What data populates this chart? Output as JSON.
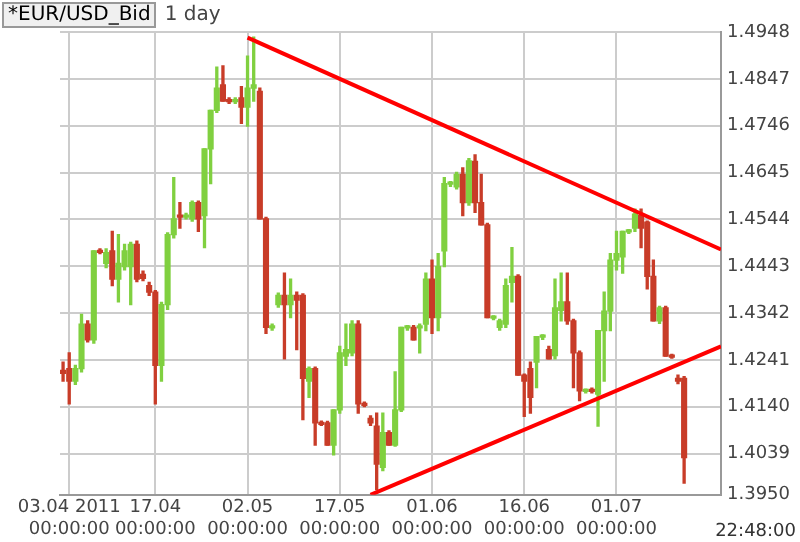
{
  "chart_data": {
    "type": "candlestick",
    "title": "*EUR/USD_Bid",
    "subtitle": "1 day",
    "x": [
      "2011-04-02",
      "2011-04-03",
      "2011-04-04",
      "2011-04-05",
      "2011-04-06",
      "2011-04-07",
      "2011-04-08",
      "2011-04-09",
      "2011-04-10",
      "2011-04-11",
      "2011-04-12",
      "2011-04-13",
      "2011-04-14",
      "2011-04-15",
      "2011-04-16",
      "2011-04-17",
      "2011-04-18",
      "2011-04-19",
      "2011-04-20",
      "2011-04-21",
      "2011-04-22",
      "2011-04-23",
      "2011-04-24",
      "2011-04-25",
      "2011-04-26",
      "2011-04-27",
      "2011-04-28",
      "2011-04-29",
      "2011-04-30",
      "2011-05-01",
      "2011-05-02",
      "2011-05-03",
      "2011-05-04",
      "2011-05-05",
      "2011-05-06",
      "2011-05-07",
      "2011-05-08",
      "2011-05-09",
      "2011-05-10",
      "2011-05-11",
      "2011-05-12",
      "2011-05-13",
      "2011-05-14",
      "2011-05-15",
      "2011-05-16",
      "2011-05-17",
      "2011-05-18",
      "2011-05-19",
      "2011-05-20",
      "2011-05-21",
      "2011-05-22",
      "2011-05-23",
      "2011-05-24",
      "2011-05-25",
      "2011-05-26",
      "2011-05-27",
      "2011-05-28",
      "2011-05-29",
      "2011-05-30",
      "2011-05-31",
      "2011-06-01",
      "2011-06-02",
      "2011-06-03",
      "2011-06-04",
      "2011-06-05",
      "2011-06-06",
      "2011-06-07",
      "2011-06-08",
      "2011-06-09",
      "2011-06-10",
      "2011-06-11",
      "2011-06-12",
      "2011-06-13",
      "2011-06-14",
      "2011-06-15",
      "2011-06-16",
      "2011-06-17",
      "2011-06-18",
      "2011-06-19",
      "2011-06-20",
      "2011-06-21",
      "2011-06-22",
      "2011-06-23",
      "2011-06-24",
      "2011-06-25",
      "2011-06-26",
      "2011-06-27",
      "2011-06-28",
      "2011-06-29",
      "2011-06-30",
      "2011-07-01",
      "2011-07-02",
      "2011-07-03",
      "2011-07-04",
      "2011-07-05",
      "2011-07-06",
      "2011-07-07",
      "2011-07-08",
      "2011-07-09",
      "2011-07-10",
      "2011-07-11",
      "2011-07-12"
    ],
    "ohlc": [
      [
        1.4218,
        1.4236,
        1.4195,
        1.4212
      ],
      [
        1.4222,
        1.4256,
        1.4146,
        1.4195
      ],
      [
        1.4195,
        1.4229,
        1.4188,
        1.4222
      ],
      [
        1.4222,
        1.4339,
        1.4215,
        1.4318
      ],
      [
        1.4318,
        1.4325,
        1.428,
        1.4284
      ],
      [
        1.4284,
        1.4476,
        1.4277,
        1.4476
      ],
      [
        1.4477,
        1.448,
        1.447,
        1.4473
      ],
      [
        1.4449,
        1.448,
        1.444,
        1.4472
      ],
      [
        1.4476,
        1.4518,
        1.4401,
        1.4415
      ],
      [
        1.4415,
        1.4511,
        1.4366,
        1.4449
      ],
      [
        1.4442,
        1.449,
        1.4435,
        1.4476
      ],
      [
        1.4442,
        1.4494,
        1.436,
        1.449
      ],
      [
        1.449,
        1.4497,
        1.441,
        1.4415
      ],
      [
        1.4425,
        1.4432,
        1.4412,
        1.4417
      ],
      [
        1.4401,
        1.4408,
        1.438,
        1.4387
      ],
      [
        1.4387,
        1.439,
        1.4146,
        1.4229
      ],
      [
        1.4229,
        1.4365,
        1.4195,
        1.436
      ],
      [
        1.436,
        1.4515,
        1.435,
        1.4511
      ],
      [
        1.4511,
        1.4634,
        1.4504,
        1.4545
      ],
      [
        1.4553,
        1.458,
        1.4525,
        1.4549
      ],
      [
        1.4549,
        1.4557,
        1.4545,
        1.4553
      ],
      [
        1.4545,
        1.4583,
        1.454,
        1.458
      ],
      [
        1.458,
        1.4583,
        1.4518,
        1.4545
      ],
      [
        1.4552,
        1.4696,
        1.4483,
        1.4696
      ],
      [
        1.4696,
        1.4779,
        1.4621,
        1.4779
      ],
      [
        1.4779,
        1.4872,
        1.4775,
        1.4827
      ],
      [
        1.4834,
        1.4875,
        1.4799,
        1.4799
      ],
      [
        1.4802,
        1.4806,
        1.4794,
        1.4798
      ],
      [
        1.4798,
        1.4806,
        1.4794,
        1.4802
      ],
      [
        1.4806,
        1.483,
        1.4751,
        1.4786
      ],
      [
        1.4786,
        1.4896,
        1.4745,
        1.4827
      ],
      [
        1.4827,
        1.4937,
        1.4799,
        1.4834
      ],
      [
        1.482,
        1.4827,
        1.4545,
        1.4545
      ],
      [
        1.4545,
        1.4548,
        1.4298,
        1.4311
      ],
      [
        1.431,
        1.4318,
        1.4305,
        1.4314
      ],
      [
        1.436,
        1.4385,
        1.4355,
        1.438
      ],
      [
        1.438,
        1.4428,
        1.4243,
        1.436
      ],
      [
        1.436,
        1.4415,
        1.4332,
        1.438
      ],
      [
        1.438,
        1.4387,
        1.4263,
        1.437
      ],
      [
        1.438,
        1.4383,
        1.4112,
        1.4201
      ],
      [
        1.4195,
        1.4225,
        1.416,
        1.4222
      ],
      [
        1.4222,
        1.4225,
        1.4057,
        1.4105
      ],
      [
        1.4106,
        1.4109,
        1.41,
        1.4102
      ],
      [
        1.4105,
        1.4108,
        1.4057,
        1.4057
      ],
      [
        1.4057,
        1.4133,
        1.4036,
        1.4133
      ],
      [
        1.4133,
        1.427,
        1.4126,
        1.4256
      ],
      [
        1.4249,
        1.4318,
        1.4229,
        1.4263
      ],
      [
        1.4256,
        1.4325,
        1.425,
        1.4318
      ],
      [
        1.4318,
        1.4325,
        1.4126,
        1.4146
      ],
      [
        1.4147,
        1.415,
        1.414,
        1.4143
      ],
      [
        1.4115,
        1.412,
        1.41,
        1.4105
      ],
      [
        1.4098,
        1.4126,
        1.3961,
        1.4016
      ],
      [
        1.4009,
        1.4126,
        1.4002,
        1.4084
      ],
      [
        1.4084,
        1.4088,
        1.4057,
        1.4057
      ],
      [
        1.4057,
        1.4215,
        1.4055,
        1.4133
      ],
      [
        1.4133,
        1.4311,
        1.413,
        1.4311
      ],
      [
        1.431,
        1.4315,
        1.4305,
        1.4314
      ],
      [
        1.4311,
        1.4315,
        1.4284,
        1.4284
      ],
      [
        1.431,
        1.4318,
        1.4256,
        1.4314
      ],
      [
        1.4318,
        1.4428,
        1.4304,
        1.4415
      ],
      [
        1.4415,
        1.4456,
        1.4298,
        1.4332
      ],
      [
        1.4332,
        1.447,
        1.4304,
        1.4442
      ],
      [
        1.4476,
        1.4634,
        1.4442,
        1.4621
      ],
      [
        1.462,
        1.4625,
        1.4615,
        1.4624
      ],
      [
        1.4614,
        1.4645,
        1.461,
        1.4641
      ],
      [
        1.4641,
        1.4655,
        1.4552,
        1.458
      ],
      [
        1.458,
        1.4675,
        1.4575,
        1.467
      ],
      [
        1.4669,
        1.4683,
        1.4559,
        1.458
      ],
      [
        1.458,
        1.4641,
        1.4532,
        1.4532
      ],
      [
        1.4532,
        1.4535,
        1.4332,
        1.4332
      ],
      [
        1.4331,
        1.4336,
        1.4328,
        1.4335
      ],
      [
        1.4311,
        1.4328,
        1.4305,
        1.4325
      ],
      [
        1.4318,
        1.4415,
        1.4311,
        1.4401
      ],
      [
        1.4408,
        1.4483,
        1.4366,
        1.4421
      ],
      [
        1.4421,
        1.4424,
        1.4208,
        1.4208
      ],
      [
        1.4208,
        1.421,
        1.4119,
        1.4195
      ],
      [
        1.4222,
        1.4236,
        1.4126,
        1.416
      ],
      [
        1.4236,
        1.4291,
        1.4181,
        1.4291
      ],
      [
        1.429,
        1.4295,
        1.4285,
        1.4294
      ],
      [
        1.4263,
        1.427,
        1.4243,
        1.4243
      ],
      [
        1.425,
        1.4415,
        1.4243,
        1.4353
      ],
      [
        1.4348,
        1.4428,
        1.4325,
        1.4366
      ],
      [
        1.4366,
        1.4428,
        1.4318,
        1.4325
      ],
      [
        1.4325,
        1.4328,
        1.4181,
        1.4256
      ],
      [
        1.4256,
        1.426,
        1.4153,
        1.4174
      ],
      [
        1.4173,
        1.4178,
        1.417,
        1.4177
      ],
      [
        1.4177,
        1.418,
        1.417,
        1.4173
      ],
      [
        1.4167,
        1.4304,
        1.4098,
        1.4304
      ],
      [
        1.4304,
        1.4387,
        1.4195,
        1.4346
      ],
      [
        1.4346,
        1.447,
        1.4304,
        1.4456
      ],
      [
        1.4456,
        1.4518,
        1.4435,
        1.447
      ],
      [
        1.4463,
        1.4518,
        1.4428,
        1.4518
      ],
      [
        1.4517,
        1.4522,
        1.4514,
        1.4521
      ],
      [
        1.4525,
        1.4566,
        1.4518,
        1.4555
      ],
      [
        1.4552,
        1.4566,
        1.4483,
        1.4525
      ],
      [
        1.4538,
        1.454,
        1.4394,
        1.4421
      ],
      [
        1.4421,
        1.4456,
        1.4325,
        1.4325
      ],
      [
        1.4325,
        1.4356,
        1.432,
        1.4353
      ],
      [
        1.4353,
        1.4356,
        1.4249,
        1.4249
      ],
      [
        1.4251,
        1.4253,
        1.4245,
        1.4247
      ],
      [
        1.4201,
        1.4208,
        1.419,
        1.4195
      ],
      [
        1.4201,
        1.4205,
        1.3975,
        1.403
      ]
    ],
    "colors": [
      "#c83c28",
      "#c83c28",
      "#80d040",
      "#80d040",
      "#c83c28",
      "#80d040",
      "#c83c28",
      "#80d040",
      "#c83c28",
      "#80d040",
      "#80d040",
      "#80d040",
      "#c83c28",
      "#c83c28",
      "#c83c28",
      "#c83c28",
      "#80d040",
      "#80d040",
      "#80d040",
      "#c83c28",
      "#80d040",
      "#80d040",
      "#c83c28",
      "#80d040",
      "#80d040",
      "#80d040",
      "#c83c28",
      "#c83c28",
      "#80d040",
      "#c83c28",
      "#80d040",
      "#80d040",
      "#c83c28",
      "#c83c28",
      "#80d040",
      "#80d040",
      "#c83c28",
      "#80d040",
      "#c83c28",
      "#c83c28",
      "#80d040",
      "#c83c28",
      "#c83c28",
      "#c83c28",
      "#80d040",
      "#80d040",
      "#80d040",
      "#80d040",
      "#c83c28",
      "#c83c28",
      "#c83c28",
      "#c83c28",
      "#80d040",
      "#c83c28",
      "#80d040",
      "#80d040",
      "#80d040",
      "#c83c28",
      "#80d040",
      "#80d040",
      "#c83c28",
      "#80d040",
      "#80d040",
      "#80d040",
      "#80d040",
      "#c83c28",
      "#80d040",
      "#c83c28",
      "#c83c28",
      "#c83c28",
      "#80d040",
      "#80d040",
      "#80d040",
      "#80d040",
      "#c83c28",
      "#c83c28",
      "#c83c28",
      "#80d040",
      "#80d040",
      "#c83c28",
      "#80d040",
      "#80d040",
      "#c83c28",
      "#c83c28",
      "#c83c28",
      "#80d040",
      "#c83c28",
      "#80d040",
      "#80d040",
      "#80d040",
      "#80d040",
      "#80d040",
      "#80d040",
      "#80d040",
      "#c83c28",
      "#c83c28",
      "#c83c28",
      "#80d040",
      "#c83c28",
      "#c83c28",
      "#c83c28",
      "#c83c28"
    ],
    "series": [
      {
        "type": "line",
        "color": "#ff0000",
        "x": [
          "2011-05-02",
          "2011-07-18"
        ],
        "values": [
          1.4936,
          1.4479
        ]
      },
      {
        "type": "line",
        "color": "#ff0000",
        "x": [
          "2011-05-22",
          "2011-07-18"
        ],
        "values": [
          1.395,
          1.427
        ]
      }
    ],
    "xlim": [
      "2011-04-01T12:00",
      "2011-07-18"
    ],
    "xticks": [
      {
        "value": "2011-04-03",
        "label": "03.04 2011\n00:00:00"
      },
      {
        "value": "2011-04-17",
        "label": "17.04\n00:00:00"
      },
      {
        "value": "2011-05-02",
        "label": "02.05\n00:00:00"
      },
      {
        "value": "2011-05-17",
        "label": "17.05\n00:00:00"
      },
      {
        "value": "2011-06-01",
        "label": "01.06\n00:00:00"
      },
      {
        "value": "2011-06-16",
        "label": "16.06\n00:00:00"
      },
      {
        "value": "2011-07-01",
        "label": "01.07\n00:00:00"
      }
    ],
    "ylim": [
      1.395,
      1.4948
    ],
    "yticks": [
      1.4948,
      1.4847,
      1.4746,
      1.4645,
      1.4544,
      1.4443,
      1.4342,
      1.4241,
      {
        "value": 1.414,
        "label": "1.4140"
      },
      1.4039,
      {
        "value": 1.395,
        "label": "1.3950"
      }
    ],
    "grid": true,
    "annotations": [
      "22:48:00"
    ]
  }
}
